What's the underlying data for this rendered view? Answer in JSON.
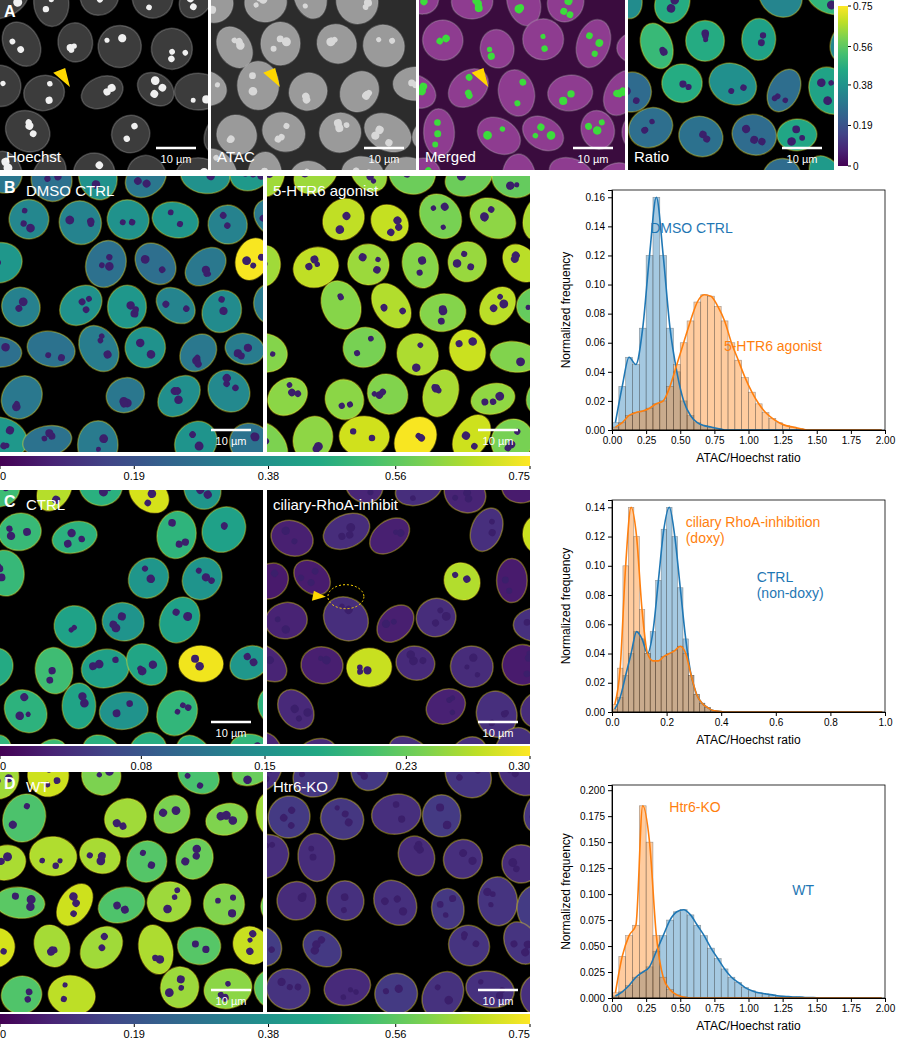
{
  "figure": {
    "panels": [
      {
        "label": "A",
        "images": [
          {
            "label": "Hoechst",
            "scale_bar": "10 µm"
          },
          {
            "label": "ATAC",
            "scale_bar": "10 µm"
          },
          {
            "label": "Merged",
            "scale_bar": "10 µm"
          },
          {
            "label": "Ratio",
            "scale_bar": "10 µm"
          }
        ],
        "colorbar": {
          "range": [
            0,
            0.75
          ],
          "ticks": [
            0,
            0.19,
            0.38,
            0.56,
            0.75
          ]
        }
      },
      {
        "label": "B",
        "images": [
          {
            "label": "DMSO CTRL",
            "scale_bar": "10 µm"
          },
          {
            "label": "5-HTR6 agonist",
            "scale_bar": "10 µm"
          }
        ],
        "colorbar": {
          "range": [
            0,
            0.75
          ],
          "ticks": [
            0,
            0.19,
            0.38,
            0.56,
            0.75
          ]
        }
      },
      {
        "label": "C",
        "images": [
          {
            "label": "CTRL",
            "scale_bar": "10 µm"
          },
          {
            "label": "ciliary-RhoA-inhibit",
            "scale_bar": "10 µm"
          }
        ],
        "colorbar": {
          "range": [
            0,
            0.3
          ],
          "ticks": [
            0,
            0.08,
            0.15,
            0.23,
            {
              "value": 0.3,
              "label": "0.30"
            }
          ]
        }
      },
      {
        "label": "D",
        "images": [
          {
            "label": "WT",
            "scale_bar": "10 µm"
          },
          {
            "label": "Htr6-KO",
            "scale_bar": "10 µm"
          }
        ],
        "colorbar": {
          "range": [
            0,
            0.75
          ],
          "ticks": [
            0,
            0.19,
            0.38,
            0.56,
            0.75
          ]
        }
      }
    ]
  },
  "chart_data": [
    {
      "type": "histogram",
      "xlabel": "ATAC/Hoechst ratio",
      "ylabel": "Normalized frequency",
      "xlim": [
        0,
        2
      ],
      "ylim": [
        0,
        0.165
      ],
      "xticks": [
        {
          "value": 0,
          "label": "0.00"
        },
        0.25,
        {
          "value": 0.5,
          "label": "0.50"
        },
        0.75,
        {
          "value": 1,
          "label": "1.00"
        },
        1.25,
        {
          "value": 1.5,
          "label": "1.50"
        },
        1.75,
        {
          "value": 2,
          "label": "2.00"
        }
      ],
      "yticks": [
        {
          "value": 0,
          "label": "0.00"
        },
        0.02,
        0.04,
        0.06,
        0.08,
        {
          "value": 0.1,
          "label": "0.10"
        },
        0.12,
        0.14,
        0.16
      ],
      "bins": [
        0,
        0.05,
        0.1,
        0.15,
        0.2,
        0.25,
        0.3,
        0.35,
        0.4,
        0.45,
        0.5,
        0.55,
        0.6,
        0.65,
        0.7,
        0.75,
        0.8,
        0.85,
        0.9,
        0.95,
        1,
        1.05,
        1.1,
        1.15,
        1.2,
        1.25,
        1.3,
        1.35,
        1.4,
        1.45,
        1.5,
        1.55,
        1.6,
        1.65,
        1.7,
        1.75,
        1.8,
        1.85,
        1.9,
        1.95,
        2
      ],
      "series": [
        {
          "name": "DMSO CTRL",
          "color": "#1f77b4",
          "values": [
            0.005,
            0.03,
            0.05,
            0.045,
            0.07,
            0.12,
            0.16,
            0.12,
            0.07,
            0.04,
            0.02,
            0.01,
            0.005,
            0.003,
            0.002,
            0.001,
            0,
            0,
            0,
            0,
            0,
            0,
            0,
            0,
            0,
            0,
            0,
            0,
            0,
            0,
            0,
            0,
            0,
            0,
            0,
            0,
            0,
            0,
            0,
            0
          ]
        },
        {
          "name": "5-HTR6 agonist",
          "color": "#ff7f0e",
          "values": [
            0.002,
            0.005,
            0.01,
            0.012,
            0.013,
            0.015,
            0.018,
            0.02,
            0.03,
            0.045,
            0.06,
            0.075,
            0.088,
            0.093,
            0.092,
            0.085,
            0.075,
            0.06,
            0.048,
            0.036,
            0.026,
            0.018,
            0.012,
            0.008,
            0.005,
            0.003,
            0.002,
            0.001,
            0,
            0,
            0,
            0,
            0,
            0,
            0,
            0,
            0,
            0,
            0,
            0
          ]
        }
      ]
    },
    {
      "type": "histogram",
      "xlabel": "ATAC/Hoechst ratio",
      "ylabel": "Normalized frequency",
      "xlim": [
        0,
        1
      ],
      "ylim": [
        0,
        0.145
      ],
      "xticks": [
        {
          "value": 0,
          "label": "0.0"
        },
        0.2,
        0.4,
        0.6,
        0.8,
        {
          "value": 1,
          "label": "1.0"
        }
      ],
      "yticks": [
        {
          "value": 0,
          "label": "0.00"
        },
        0.02,
        0.04,
        0.06,
        0.08,
        {
          "value": 0.1,
          "label": "0.10"
        },
        0.12,
        0.14
      ],
      "bins": [
        0,
        0.02,
        0.04,
        0.06,
        0.08,
        0.1,
        0.12,
        0.14,
        0.16,
        0.18,
        0.2,
        0.22,
        0.24,
        0.26,
        0.28,
        0.3,
        0.32,
        0.34,
        0.36,
        0.38,
        0.4,
        0.42,
        0.44,
        0.46,
        0.48,
        0.5,
        0.52,
        0.54,
        0.56,
        0.58,
        0.6,
        0.62,
        0.64,
        0.66,
        0.68,
        0.7,
        0.72,
        0.74,
        0.76,
        0.78,
        0.8,
        0.82,
        0.84,
        0.86,
        0.88,
        0.9,
        0.92,
        0.94,
        0.96,
        0.98,
        1
      ],
      "series": [
        {
          "name": "CTRL (non-doxy)",
          "color": "#1f77b4",
          "values": [
            0.002,
            0.01,
            0.025,
            0.04,
            0.055,
            0.05,
            0.04,
            0.055,
            0.09,
            0.125,
            0.14,
            0.12,
            0.085,
            0.05,
            0.025,
            0.012,
            0.006,
            0.003,
            0.001,
            0.0005,
            0,
            0,
            0,
            0,
            0,
            0,
            0,
            0,
            0,
            0,
            0,
            0,
            0,
            0,
            0,
            0,
            0,
            0,
            0,
            0,
            0,
            0,
            0,
            0,
            0,
            0,
            0,
            0,
            0,
            0
          ]
        },
        {
          "name": "ciliary RhoA-inhibition (doxy)",
          "color": "#ff7f0e",
          "values": [
            0.005,
            0.03,
            0.1,
            0.14,
            0.12,
            0.07,
            0.04,
            0.035,
            0.035,
            0.038,
            0.04,
            0.042,
            0.045,
            0.04,
            0.025,
            0.012,
            0.006,
            0.003,
            0.001,
            0.0005,
            0,
            0,
            0,
            0,
            0,
            0,
            0,
            0,
            0,
            0,
            0,
            0,
            0,
            0,
            0,
            0,
            0,
            0,
            0,
            0,
            0,
            0,
            0,
            0,
            0,
            0,
            0,
            0,
            0,
            0
          ]
        }
      ]
    },
    {
      "type": "histogram",
      "xlabel": "ATAC/Hoechst ratio",
      "ylabel": "Normalized frequency",
      "xlim": [
        0,
        2
      ],
      "ylim": [
        0,
        0.205
      ],
      "xticks": [
        {
          "value": 0,
          "label": "0.00"
        },
        0.25,
        {
          "value": 0.5,
          "label": "0.50"
        },
        0.75,
        {
          "value": 1,
          "label": "1.00"
        },
        1.25,
        {
          "value": 1.5,
          "label": "1.50"
        },
        1.75,
        {
          "value": 2,
          "label": "2.00"
        }
      ],
      "yticks": [
        {
          "value": 0,
          "label": "0.000"
        },
        0.025,
        {
          "value": 0.05,
          "label": "0.050"
        },
        0.075,
        {
          "value": 0.1,
          "label": "0.100"
        },
        0.125,
        {
          "value": 0.15,
          "label": "0.150"
        },
        0.175,
        {
          "value": 0.2,
          "label": "0.200"
        }
      ],
      "bins": [
        0,
        0.05,
        0.1,
        0.15,
        0.2,
        0.25,
        0.3,
        0.35,
        0.4,
        0.45,
        0.5,
        0.55,
        0.6,
        0.65,
        0.7,
        0.75,
        0.8,
        0.85,
        0.9,
        0.95,
        1,
        1.05,
        1.1,
        1.15,
        1.2,
        1.25,
        1.3,
        1.35,
        1.4,
        1.45,
        1.5,
        1.55,
        1.6,
        1.65,
        1.7,
        1.75,
        1.8,
        1.85,
        1.9,
        1.95,
        2
      ],
      "series": [
        {
          "name": "WT",
          "color": "#1f77b4",
          "values": [
            0.002,
            0.006,
            0.012,
            0.02,
            0.025,
            0.03,
            0.045,
            0.06,
            0.075,
            0.083,
            0.085,
            0.08,
            0.07,
            0.06,
            0.048,
            0.038,
            0.028,
            0.02,
            0.015,
            0.01,
            0.007,
            0.005,
            0.004,
            0.003,
            0.002,
            0.0015,
            0.001,
            0.001,
            0.0005,
            0.0005,
            0,
            0,
            0,
            0,
            0,
            0,
            0,
            0,
            0,
            0
          ]
        },
        {
          "name": "Htr6-KO",
          "color": "#ff7f0e",
          "values": [
            0.005,
            0.04,
            0.06,
            0.07,
            0.185,
            0.15,
            0.06,
            0.02,
            0.008,
            0.003,
            0.001,
            0,
            0,
            0,
            0,
            0,
            0,
            0,
            0,
            0,
            0,
            0,
            0,
            0,
            0,
            0,
            0,
            0,
            0,
            0,
            0,
            0,
            0,
            0,
            0,
            0,
            0,
            0,
            0,
            0
          ]
        }
      ]
    }
  ]
}
